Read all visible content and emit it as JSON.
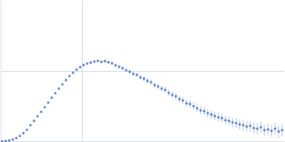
{
  "chart_data": {
    "type": "scatter",
    "x": [
      2,
      7,
      12,
      17,
      22,
      27,
      32,
      37,
      42,
      47,
      52,
      57,
      62,
      67,
      72,
      77,
      82,
      87,
      92,
      97,
      102,
      107,
      112,
      117,
      122,
      127,
      132,
      137,
      142,
      147,
      152,
      157,
      162,
      167,
      172,
      177,
      182,
      187,
      192,
      197,
      202,
      207,
      212,
      217,
      222,
      227,
      232,
      237,
      242,
      247,
      252,
      257,
      262,
      267,
      272,
      277,
      282,
      287,
      292,
      297,
      302,
      307,
      312,
      317,
      322,
      327,
      332,
      337,
      342,
      347,
      352,
      357,
      362,
      367,
      372,
      377,
      382,
      387,
      392,
      397
    ],
    "values": [
      0.1,
      0.5,
      1.3,
      2.6,
      4.5,
      7.5,
      11.5,
      16.5,
      23,
      29,
      35.5,
      42,
      48.5,
      55,
      62,
      68.5,
      75,
      81,
      87,
      93,
      97.5,
      102,
      105.5,
      108.5,
      110.5,
      112,
      113.5,
      114.5,
      113,
      114,
      112.5,
      111,
      108,
      106,
      104,
      101,
      99,
      96,
      94.5,
      91,
      89,
      86,
      84,
      80,
      78,
      75,
      73,
      69,
      66,
      64,
      60,
      58,
      54,
      53,
      50,
      47,
      44,
      43,
      40,
      38,
      36,
      34,
      33,
      30,
      29,
      27,
      26,
      24,
      23,
      21,
      22,
      19,
      18,
      20,
      16,
      17,
      15,
      18,
      14,
      16
    ],
    "errors": [
      0.2,
      0.2,
      0.2,
      0.3,
      0.3,
      0.3,
      0.3,
      0.4,
      0.4,
      0.4,
      0.5,
      0.5,
      0.5,
      0.6,
      0.6,
      0.7,
      0.7,
      0.8,
      0.8,
      0.9,
      1,
      1,
      1.1,
      1.2,
      1.3,
      1.4,
      1.5,
      1.6,
      1.7,
      1.8,
      2,
      2,
      2.2,
      2.3,
      2.5,
      2.6,
      2.8,
      3,
      3,
      3.2,
      3.4,
      3.5,
      3.6,
      3.8,
      4,
      4,
      4.2,
      4.4,
      4.5,
      4.6,
      4.8,
      5,
      5,
      5.2,
      5.4,
      5.5,
      5.6,
      5.8,
      6,
      6,
      6.2,
      6.4,
      6.5,
      6.6,
      6.8,
      7,
      7,
      7.2,
      7.4,
      7.5,
      7.6,
      7.8,
      8,
      8,
      8.2,
      8.4,
      8.5,
      8.6,
      8.8,
      9
    ],
    "xlim": [
      0,
      400
    ],
    "ylim": [
      0,
      200
    ],
    "xticks": [
      115
    ],
    "yticks": [
      100
    ],
    "grid": true,
    "tick_labels": false,
    "color": "#3a66b8",
    "marker": "circle"
  }
}
